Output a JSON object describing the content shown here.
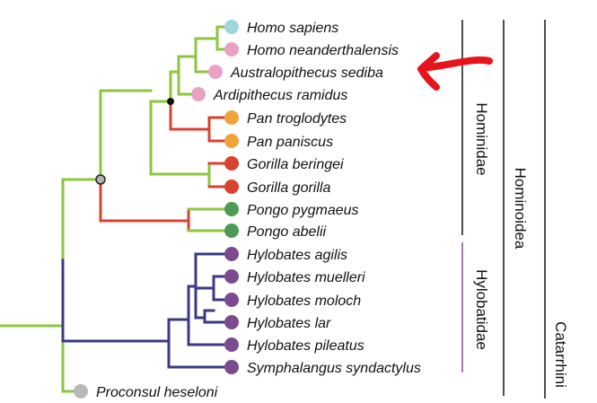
{
  "colors": {
    "hominidae_branch": "#8cc63f",
    "hominini_red": "#d8432f",
    "hylobatidae_branch": "#3b3a83",
    "hylobatidae_line": "#8e5a9a",
    "group_line": "#222222",
    "arrow": "#e8141c"
  },
  "species": [
    {
      "name": "Homo sapiens",
      "dot_color": "#9fd6de"
    },
    {
      "name": "Homo neanderthalensis",
      "dot_color": "#e9a2c4"
    },
    {
      "name": "Australopithecus sediba",
      "dot_color": "#e9a2c4"
    },
    {
      "name": "Ardipithecus ramidus",
      "dot_color": "#e9a2c4"
    },
    {
      "name": "Pan troglodytes",
      "dot_color": "#f0a33a"
    },
    {
      "name": "Pan paniscus",
      "dot_color": "#f0a33a"
    },
    {
      "name": "Gorilla beringei",
      "dot_color": "#d8432f"
    },
    {
      "name": "Gorilla gorilla",
      "dot_color": "#d8432f"
    },
    {
      "name": "Pongo pygmaeus",
      "dot_color": "#4d9a55"
    },
    {
      "name": "Pongo abelii",
      "dot_color": "#4d9a55"
    },
    {
      "name": "Hylobates agilis",
      "dot_color": "#7b4a8f"
    },
    {
      "name": "Hylobates muelleri",
      "dot_color": "#7b4a8f"
    },
    {
      "name": "Hylobates moloch",
      "dot_color": "#7b4a8f"
    },
    {
      "name": "Hylobates lar",
      "dot_color": "#7b4a8f"
    },
    {
      "name": "Hylobates pileatus",
      "dot_color": "#7b4a8f"
    },
    {
      "name": "Symphalangus syndactylus",
      "dot_color": "#7b4a8f"
    },
    {
      "name": "Proconsul heseloni",
      "dot_color": "#b8b8b8"
    }
  ],
  "groups": {
    "hominidae": "Hominidae",
    "hylobatidae": "Hylobatidae",
    "hominoidea": "Hominoidea",
    "catarrhini": "Catarrhini"
  }
}
